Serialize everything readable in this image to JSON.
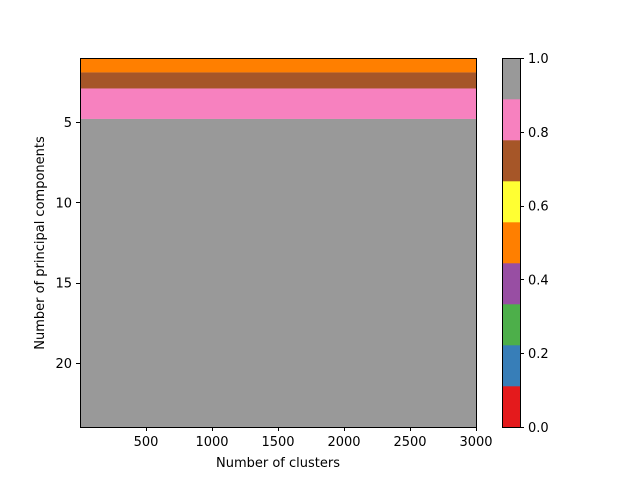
{
  "chart_data": {
    "type": "heatmap",
    "title": "",
    "xlabel": "Number of clusters",
    "ylabel": "Number of principal components",
    "xlim": [
      0,
      3000
    ],
    "ylim": [
      24,
      1
    ],
    "xticks": [
      500,
      1000,
      1500,
      2000,
      2500,
      3000
    ],
    "yticks": [
      5,
      10,
      15,
      20
    ],
    "colormap": "Set1",
    "bands": [
      {
        "y_start": 1.0,
        "y_end": 1.9,
        "value": 0.5,
        "color": "#ff7f00"
      },
      {
        "y_start": 1.9,
        "y_end": 2.9,
        "value": 0.7,
        "color": "#a65628"
      },
      {
        "y_start": 2.9,
        "y_end": 4.8,
        "value": 0.8,
        "color": "#f781bf"
      },
      {
        "y_start": 4.8,
        "y_end": 24.0,
        "value": 1.0,
        "color": "#999999"
      }
    ],
    "colorbar": {
      "range": [
        0.0,
        1.0
      ],
      "ticks": [
        "0.0",
        "0.2",
        "0.4",
        "0.6",
        "0.8",
        "1.0"
      ],
      "colors": [
        "#e41a1c",
        "#377eb8",
        "#4daf4a",
        "#984ea3",
        "#ff7f00",
        "#ffff33",
        "#a65628",
        "#f781bf",
        "#999999"
      ]
    }
  }
}
